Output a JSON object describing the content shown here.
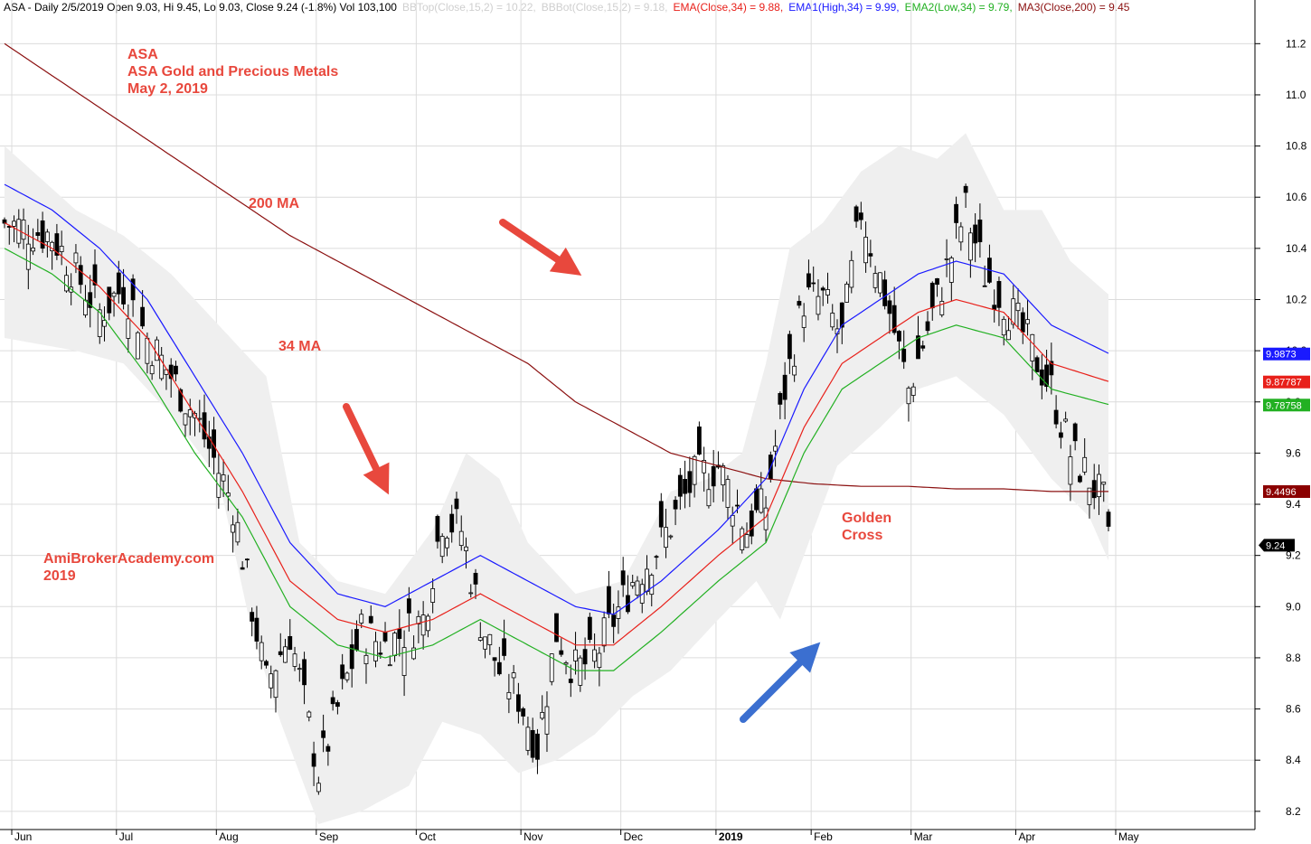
{
  "header": {
    "title": "ASA - Daily 2/5/2019 Open 9.03, Hi 9.45, Lo 9.03, Close 9.24 (-1.8%) Vol 103,100",
    "bbtop": "BBTop(Close,15,2) = 10.22,",
    "bbbot": "BBBot(Close,15,2) = 9.18,",
    "ema": "EMA(Close,34) = 9.88,",
    "ema1": "EMA1(High,34) = 9.99,",
    "ema2": "EMA2(Low,34) = 9.79,",
    "ma3": "MA3(Close,200) = 9.45"
  },
  "annotations": {
    "title1": "ASA",
    "title2": "ASA Gold and Precious Metals",
    "title3": "May 2, 2019",
    "ma200": "200 MA",
    "ma34": "34 MA",
    "site1": "AmiBrokerAcademy.com",
    "site2": "2019",
    "golden1": "Golden",
    "golden2": "Cross"
  },
  "value_boxes": [
    {
      "label": "9.9873",
      "value": 9.9873,
      "color": "#1a1aff",
      "text_color": "#ffffff"
    },
    {
      "label": "9.87787",
      "value": 9.87787,
      "color": "#e8201a",
      "text_color": "#ffffff"
    },
    {
      "label": "9.78758",
      "value": 9.78758,
      "color": "#22b022",
      "text_color": "#ffffff"
    },
    {
      "label": "9.4496",
      "value": 9.4496,
      "color": "#8b0000",
      "text_color": "#ffffff"
    },
    {
      "label": "9.24",
      "value": 9.24,
      "color": "#000000",
      "text_color": "#ffffff"
    }
  ],
  "colors": {
    "ema_close": "#e8201a",
    "ema_high": "#1a1aff",
    "ema_low": "#22b022",
    "ma200": "#8b1010",
    "band": "#efefef",
    "arrow_red": "#e8483d",
    "arrow_blue": "#3b6fd0"
  },
  "chart_data": {
    "type": "candlestick",
    "ylim": [
      8.15,
      11.3
    ],
    "y_ticks": [
      "8.2",
      "8.4",
      "8.6",
      "8.8",
      "9.0",
      "9.2",
      "9.4",
      "9.6",
      "9.8",
      "10.0",
      "10.2",
      "10.4",
      "10.6",
      "10.8",
      "11.0",
      "11.2"
    ],
    "x_labels": [
      "Jun",
      "Jul",
      "Aug",
      "Sep",
      "Oct",
      "Nov",
      "Dec",
      "2019",
      "Feb",
      "Mar",
      "Apr",
      "May"
    ],
    "x_label_positions": [
      0,
      22,
      43,
      64,
      85,
      107,
      128,
      148,
      168,
      189,
      211,
      232
    ],
    "n_points": 233,
    "close_keypoints": [
      [
        0,
        10.5
      ],
      [
        10,
        10.45
      ],
      [
        20,
        10.15
      ],
      [
        25,
        10.25
      ],
      [
        30,
        10.05
      ],
      [
        40,
        9.75
      ],
      [
        48,
        9.4
      ],
      [
        52,
        9.0
      ],
      [
        55,
        8.7
      ],
      [
        60,
        8.9
      ],
      [
        66,
        8.35
      ],
      [
        70,
        8.6
      ],
      [
        75,
        8.9
      ],
      [
        80,
        8.85
      ],
      [
        88,
        8.95
      ],
      [
        92,
        9.35
      ],
      [
        96,
        9.3
      ],
      [
        100,
        8.95
      ],
      [
        104,
        8.75
      ],
      [
        108,
        8.65
      ],
      [
        112,
        8.45
      ],
      [
        116,
        8.9
      ],
      [
        120,
        8.75
      ],
      [
        124,
        8.8
      ],
      [
        128,
        8.95
      ],
      [
        132,
        9.1
      ],
      [
        138,
        9.25
      ],
      [
        145,
        9.5
      ],
      [
        150,
        9.55
      ],
      [
        156,
        9.3
      ],
      [
        160,
        9.4
      ],
      [
        164,
        9.85
      ],
      [
        168,
        10.2
      ],
      [
        172,
        10.2
      ],
      [
        176,
        10.05
      ],
      [
        180,
        10.55
      ],
      [
        186,
        10.15
      ],
      [
        190,
        9.85
      ],
      [
        196,
        10.2
      ],
      [
        202,
        10.55
      ],
      [
        206,
        10.3
      ],
      [
        210,
        10.2
      ],
      [
        216,
        10.0
      ],
      [
        220,
        9.85
      ],
      [
        224,
        9.6
      ],
      [
        228,
        9.5
      ],
      [
        231,
        9.4
      ],
      [
        232,
        9.24
      ]
    ],
    "ema_close": [
      [
        0,
        10.5
      ],
      [
        10,
        10.4
      ],
      [
        20,
        10.25
      ],
      [
        30,
        10.05
      ],
      [
        40,
        9.75
      ],
      [
        50,
        9.45
      ],
      [
        60,
        9.1
      ],
      [
        70,
        8.95
      ],
      [
        80,
        8.9
      ],
      [
        90,
        8.95
      ],
      [
        100,
        9.05
      ],
      [
        110,
        8.95
      ],
      [
        120,
        8.85
      ],
      [
        128,
        8.85
      ],
      [
        138,
        9.0
      ],
      [
        150,
        9.2
      ],
      [
        160,
        9.35
      ],
      [
        168,
        9.7
      ],
      [
        176,
        9.95
      ],
      [
        184,
        10.05
      ],
      [
        192,
        10.15
      ],
      [
        200,
        10.2
      ],
      [
        210,
        10.15
      ],
      [
        220,
        9.95
      ],
      [
        232,
        9.88
      ]
    ],
    "ema_high": [
      [
        0,
        10.65
      ],
      [
        10,
        10.55
      ],
      [
        20,
        10.4
      ],
      [
        30,
        10.2
      ],
      [
        40,
        9.9
      ],
      [
        50,
        9.6
      ],
      [
        60,
        9.25
      ],
      [
        70,
        9.05
      ],
      [
        80,
        9.0
      ],
      [
        90,
        9.1
      ],
      [
        100,
        9.2
      ],
      [
        110,
        9.1
      ],
      [
        120,
        9.0
      ],
      [
        128,
        8.97
      ],
      [
        138,
        9.1
      ],
      [
        150,
        9.3
      ],
      [
        160,
        9.5
      ],
      [
        168,
        9.85
      ],
      [
        176,
        10.1
      ],
      [
        184,
        10.2
      ],
      [
        192,
        10.3
      ],
      [
        200,
        10.35
      ],
      [
        210,
        10.3
      ],
      [
        220,
        10.1
      ],
      [
        232,
        9.99
      ]
    ],
    "ema_low": [
      [
        0,
        10.4
      ],
      [
        10,
        10.3
      ],
      [
        20,
        10.15
      ],
      [
        30,
        9.9
      ],
      [
        40,
        9.6
      ],
      [
        50,
        9.35
      ],
      [
        60,
        9.0
      ],
      [
        70,
        8.85
      ],
      [
        80,
        8.8
      ],
      [
        90,
        8.85
      ],
      [
        100,
        8.95
      ],
      [
        110,
        8.85
      ],
      [
        120,
        8.75
      ],
      [
        128,
        8.75
      ],
      [
        138,
        8.9
      ],
      [
        150,
        9.1
      ],
      [
        160,
        9.25
      ],
      [
        168,
        9.6
      ],
      [
        176,
        9.85
      ],
      [
        184,
        9.95
      ],
      [
        192,
        10.05
      ],
      [
        200,
        10.1
      ],
      [
        210,
        10.05
      ],
      [
        220,
        9.85
      ],
      [
        232,
        9.79
      ]
    ],
    "ma200": [
      [
        0,
        11.2
      ],
      [
        20,
        10.95
      ],
      [
        40,
        10.7
      ],
      [
        60,
        10.45
      ],
      [
        80,
        10.25
      ],
      [
        100,
        10.05
      ],
      [
        110,
        9.95
      ],
      [
        120,
        9.8
      ],
      [
        130,
        9.7
      ],
      [
        140,
        9.6
      ],
      [
        150,
        9.55
      ],
      [
        160,
        9.5
      ],
      [
        170,
        9.48
      ],
      [
        180,
        9.47
      ],
      [
        190,
        9.47
      ],
      [
        200,
        9.46
      ],
      [
        210,
        9.46
      ],
      [
        220,
        9.45
      ],
      [
        232,
        9.45
      ]
    ],
    "bb_top": [
      [
        0,
        10.8
      ],
      [
        15,
        10.55
      ],
      [
        25,
        10.45
      ],
      [
        35,
        10.3
      ],
      [
        45,
        10.1
      ],
      [
        55,
        9.9
      ],
      [
        62,
        9.25
      ],
      [
        70,
        9.1
      ],
      [
        80,
        9.05
      ],
      [
        90,
        9.3
      ],
      [
        97,
        9.6
      ],
      [
        104,
        9.5
      ],
      [
        110,
        9.25
      ],
      [
        120,
        9.05
      ],
      [
        130,
        9.1
      ],
      [
        140,
        9.45
      ],
      [
        148,
        9.5
      ],
      [
        155,
        9.6
      ],
      [
        160,
        9.95
      ],
      [
        165,
        10.4
      ],
      [
        172,
        10.5
      ],
      [
        180,
        10.7
      ],
      [
        188,
        10.8
      ],
      [
        196,
        10.75
      ],
      [
        202,
        10.85
      ],
      [
        210,
        10.55
      ],
      [
        218,
        10.55
      ],
      [
        224,
        10.35
      ],
      [
        232,
        10.22
      ]
    ],
    "bb_bot": [
      [
        0,
        10.05
      ],
      [
        15,
        10.0
      ],
      [
        25,
        9.95
      ],
      [
        35,
        9.75
      ],
      [
        45,
        9.5
      ],
      [
        52,
        8.9
      ],
      [
        58,
        8.55
      ],
      [
        66,
        8.15
      ],
      [
        75,
        8.2
      ],
      [
        85,
        8.3
      ],
      [
        92,
        8.55
      ],
      [
        100,
        8.5
      ],
      [
        108,
        8.35
      ],
      [
        116,
        8.4
      ],
      [
        124,
        8.5
      ],
      [
        132,
        8.65
      ],
      [
        140,
        8.75
      ],
      [
        150,
        8.95
      ],
      [
        158,
        9.1
      ],
      [
        163,
        8.95
      ],
      [
        168,
        9.2
      ],
      [
        175,
        9.55
      ],
      [
        184,
        9.7
      ],
      [
        192,
        9.85
      ],
      [
        200,
        9.9
      ],
      [
        210,
        9.75
      ],
      [
        220,
        9.5
      ],
      [
        228,
        9.35
      ],
      [
        232,
        9.18
      ]
    ]
  }
}
